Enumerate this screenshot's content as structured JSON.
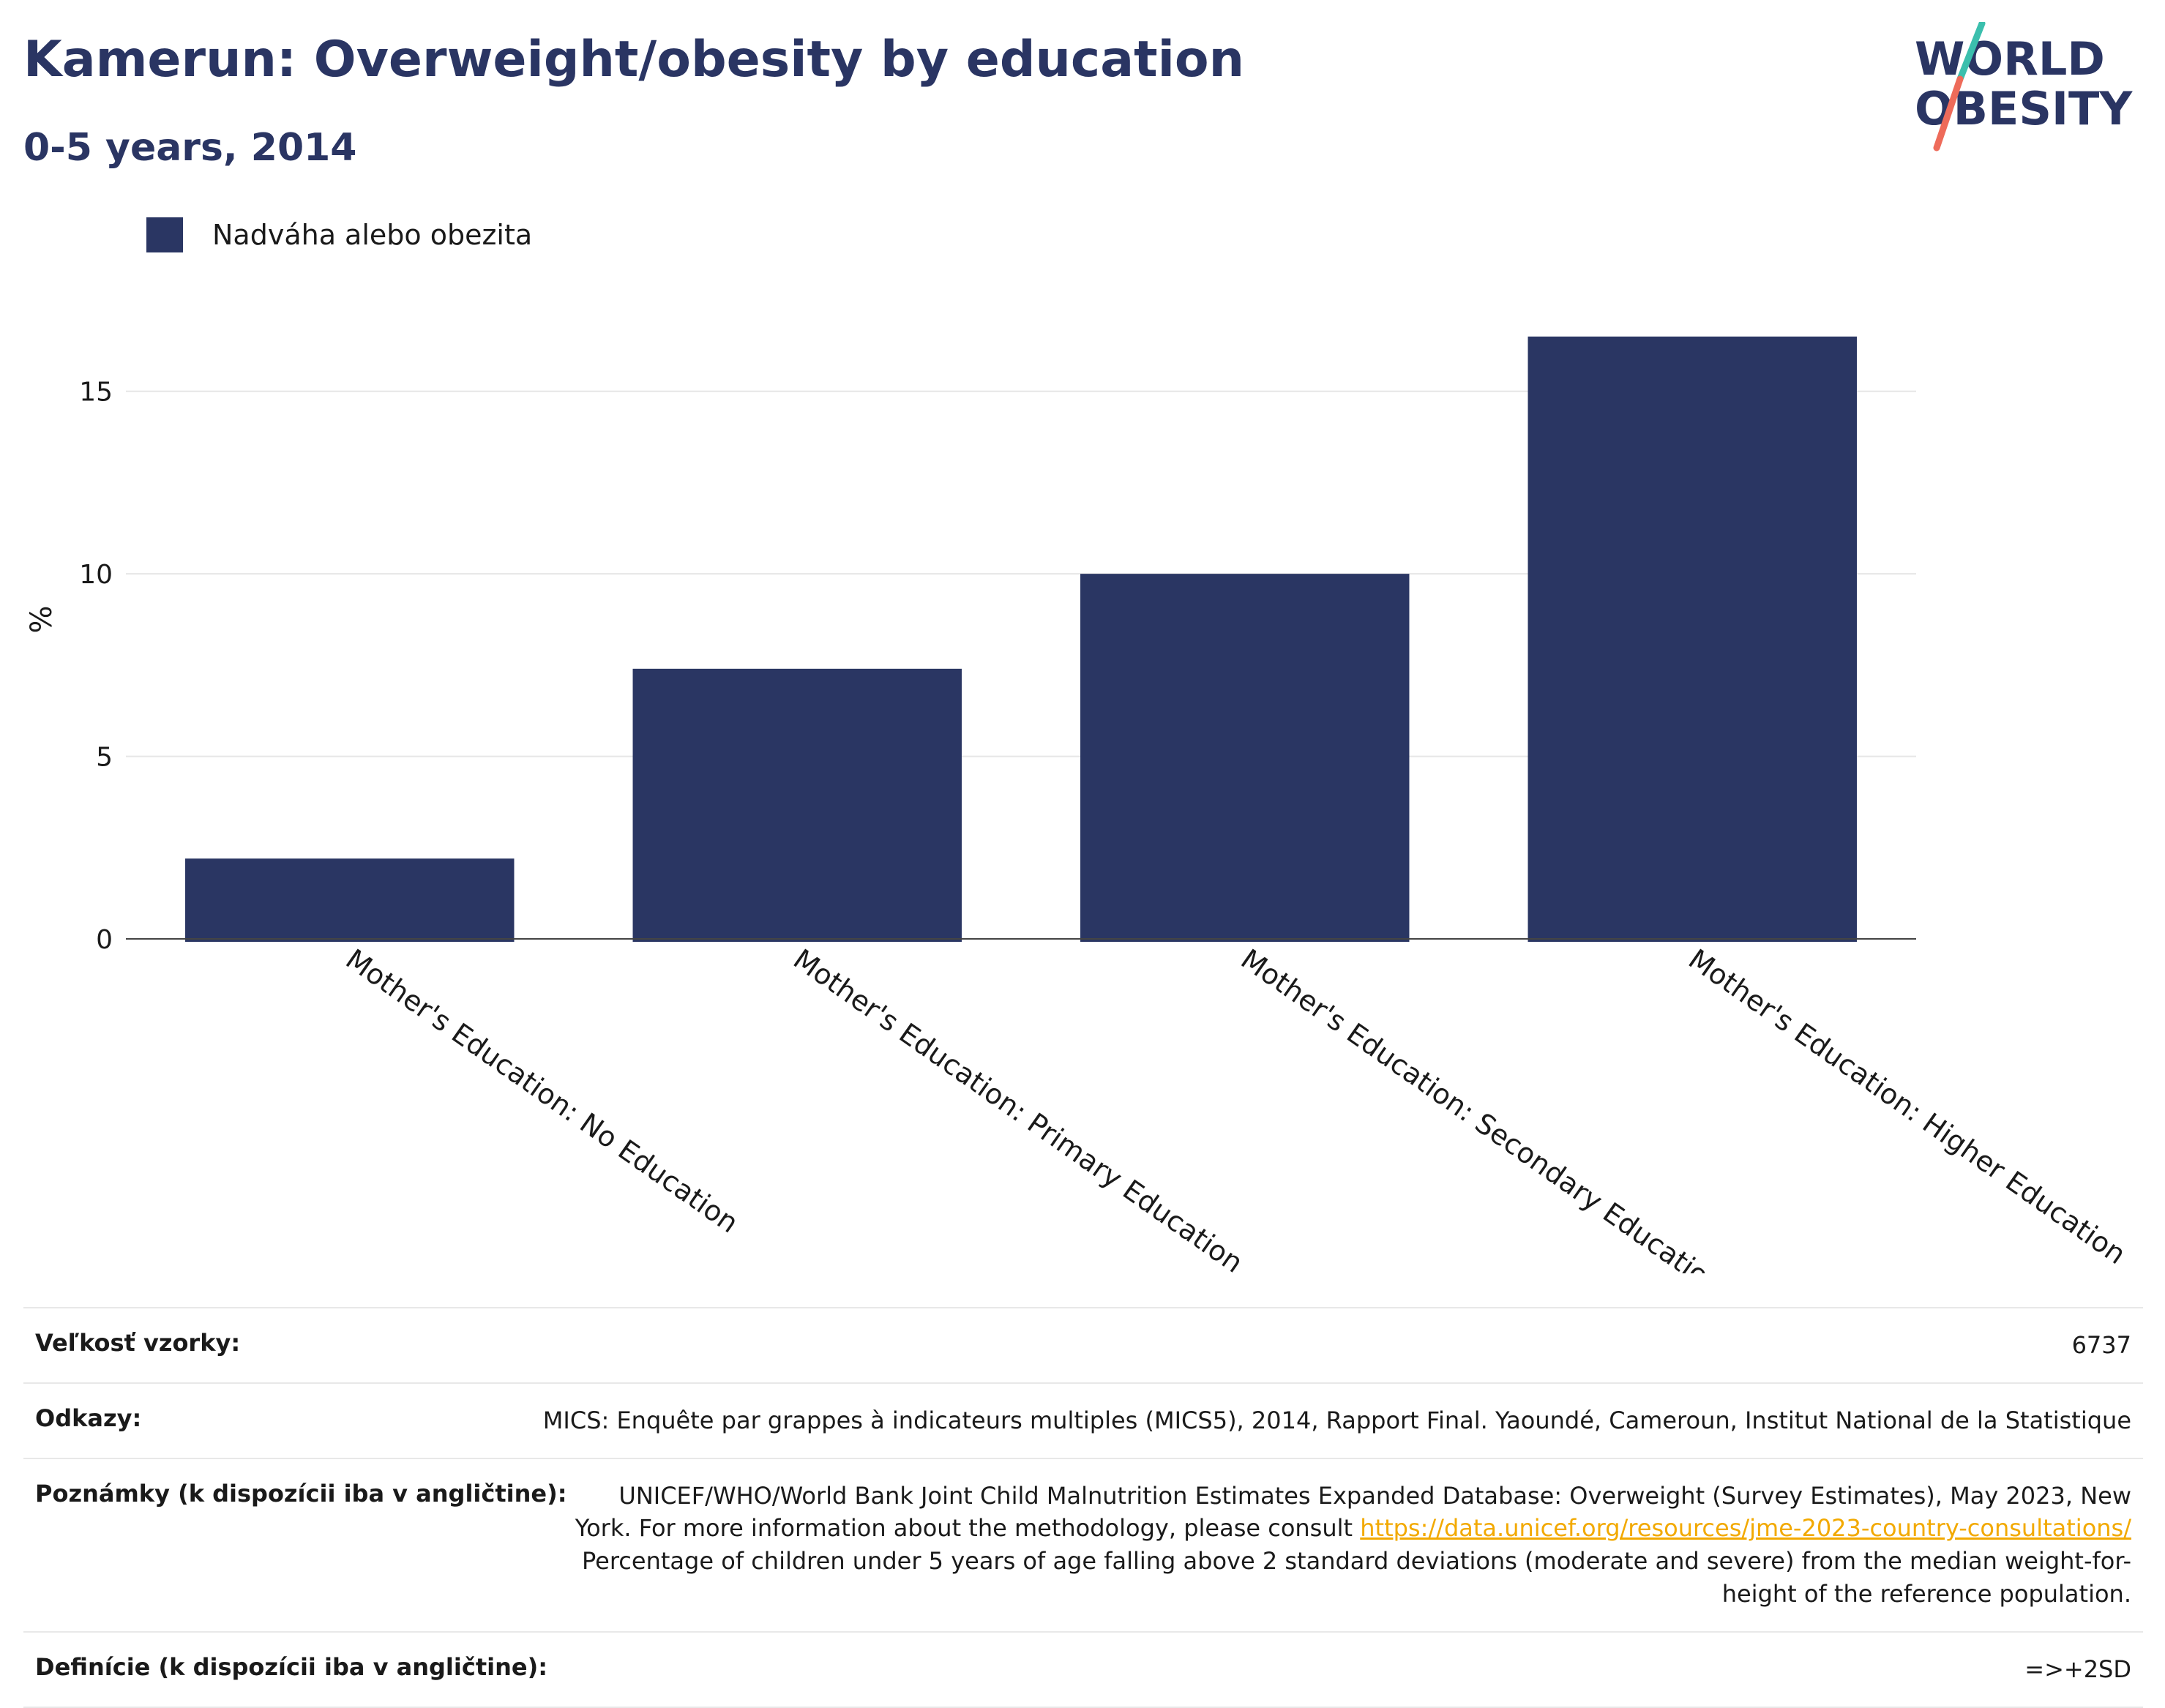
{
  "title": "Kamerun: Overweight/obesity by education",
  "subtitle": "0-5 years, 2014",
  "logo": {
    "line1": "WORLD",
    "line2": "OBESITY"
  },
  "legend": {
    "label": "Nadváha alebo obezita",
    "color": "#2a3663"
  },
  "chart_data": {
    "type": "bar",
    "categories": [
      "Mother's Education: No Education",
      "Mother's Education: Primary Education",
      "Mother's Education: Secondary Education",
      "Mother's Education: Higher Education"
    ],
    "series": [
      {
        "name": "Nadváha alebo obezita",
        "values": [
          2.2,
          7.4,
          10.0,
          16.5
        ]
      }
    ],
    "ylabel": "%",
    "xlabel": "",
    "ylim": [
      0,
      17.5
    ],
    "yticks": [
      0,
      5,
      10,
      15
    ],
    "grid": true,
    "legend_position": "top-left",
    "bar_color": "#2a3663"
  },
  "notes": {
    "sample_label": "Veľkosť vzorky:",
    "sample_value": "6737",
    "refs_label": "Odkazy:",
    "refs_value": "MICS: Enquête par grappes à indicateurs multiples (MICS5), 2014, Rapport Final. Yaoundé, Cameroun, Institut National de la Statistique",
    "remarks_label": "Poznámky (k dispozícii iba v angličtine):",
    "remarks_text1": "UNICEF/WHO/World Bank Joint Child Malnutrition Estimates Expanded Database: Overweight (Survey Estimates), May 2023, New York. For more information about the methodology, please consult ",
    "remarks_link": "https://data.unicef.org/resources/jme-2023-country-consultations/",
    "remarks_text2": "Percentage of children under 5 years of age falling above 2 standard deviations (moderate and severe) from the median weight-for-height of the reference population.",
    "defs_label": "Definície (k dispozícii iba v angličtine):",
    "defs_value": "=>+2SD"
  }
}
